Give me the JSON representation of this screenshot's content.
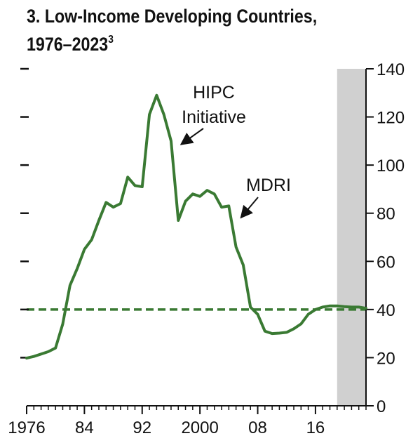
{
  "title": {
    "text": "3. Low-Income Developing Countries,",
    "line2": "1976–2023",
    "note": "3"
  },
  "colors": {
    "line": "#3a7a33",
    "projection_shade": "#d0d0d0",
    "axis": "#111111"
  },
  "chart_data": {
    "type": "line",
    "title": "3. Low-Income Developing Countries, 1976–2023",
    "xlim": [
      1976,
      2023
    ],
    "ylim": [
      0,
      140
    ],
    "x_ticks": [
      1976,
      1984,
      1992,
      2000,
      2008,
      2016
    ],
    "x_tick_labels": [
      "1976",
      "84",
      "92",
      "2000",
      "08",
      "16"
    ],
    "y_ticks": [
      0,
      20,
      40,
      60,
      80,
      100,
      120,
      140
    ],
    "y_tick_labels": [
      "0",
      "20",
      "40",
      "60",
      "80",
      "100",
      "120",
      "140"
    ],
    "y_axis_side": "right",
    "projection_shade": {
      "x_start": 2019,
      "x_end": 2024
    },
    "reference_line": {
      "y": 40,
      "style": "dashed"
    },
    "series": [
      {
        "x": [
          1976,
          1977,
          1978,
          1979,
          1980,
          1981,
          1982,
          1983,
          1984,
          1985,
          1986,
          1987,
          1988,
          1989,
          1990,
          1991,
          1992,
          1993,
          1994,
          1995,
          1996,
          1997,
          1998,
          1999,
          2000,
          2001,
          2002,
          2003,
          2004,
          2005,
          2006,
          2007,
          2008,
          2009,
          2010,
          2011,
          2012,
          2013,
          2014,
          2015,
          2016,
          2017,
          2018,
          2019,
          2020,
          2021,
          2022,
          2023
        ],
        "values": [
          19.8,
          20.5,
          21.5,
          22.5,
          24.0,
          34.0,
          50.0,
          57.0,
          65.0,
          69.0,
          77.0,
          84.5,
          82.5,
          84.0,
          95.0,
          91.5,
          91.0,
          121.0,
          129.0,
          121.0,
          110.0,
          77.0,
          85.0,
          88.0,
          87.0,
          89.5,
          88.0,
          82.5,
          83.0,
          66.0,
          58.5,
          41.0,
          38.0,
          31.0,
          30.0,
          30.2,
          30.5,
          32.0,
          34.0,
          38.0,
          40.0,
          41.0,
          41.5,
          41.5,
          41.2,
          41.0,
          41.0,
          40.5
        ]
      }
    ],
    "annotations": [
      {
        "lines": [
          "HIPC",
          "Initiative"
        ],
        "arrow_to_x": 1997,
        "arrow_to_y": 108
      },
      {
        "lines": [
          "MDRI"
        ],
        "arrow_to_x": 2005,
        "arrow_to_y": 77
      }
    ]
  }
}
